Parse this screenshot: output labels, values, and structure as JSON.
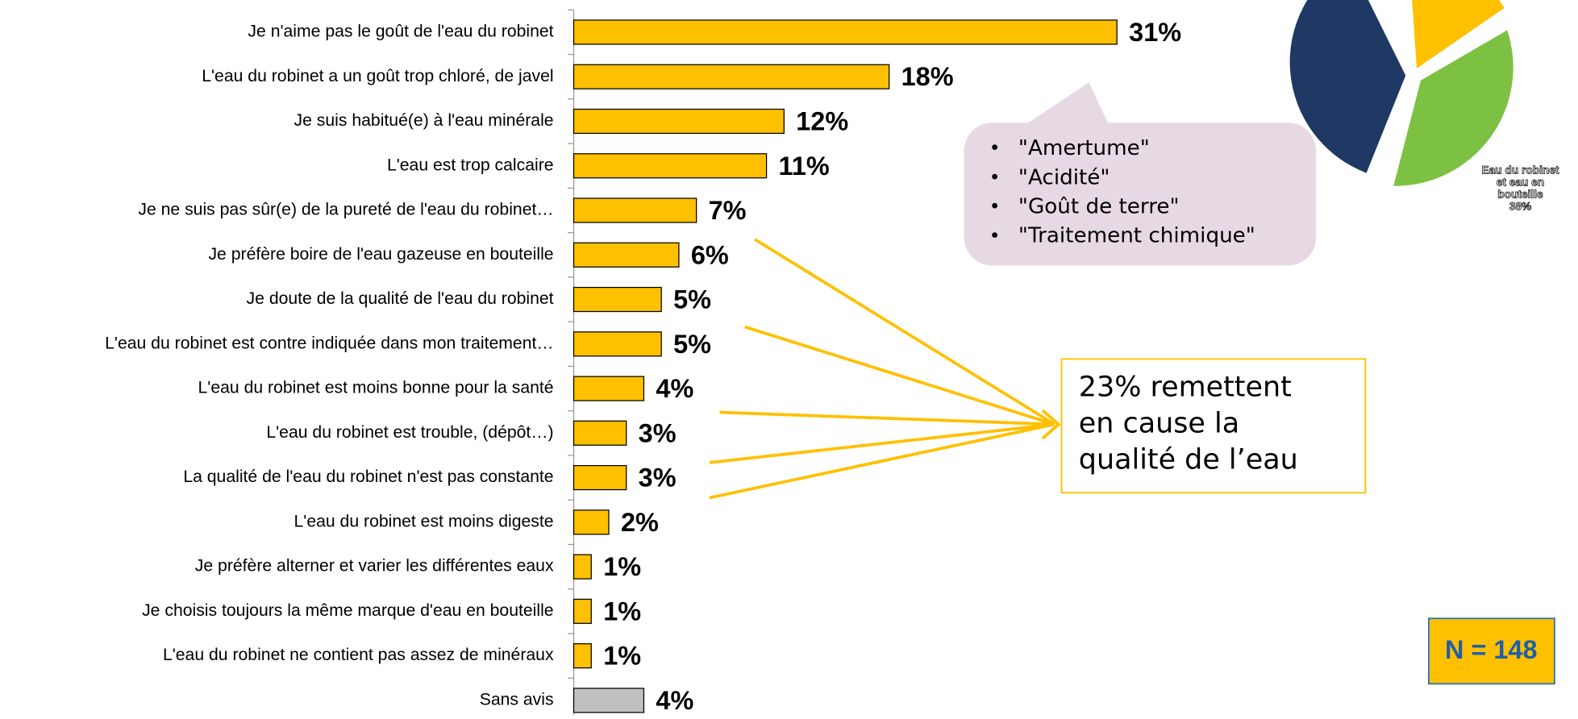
{
  "chart_data": {
    "type": "bar",
    "orientation": "horizontal",
    "categories": [
      "Je n'aime pas le goût de l'eau du robinet",
      "L'eau du robinet a un goût trop chloré, de javel",
      "Je suis habitué(e) à l'eau minérale",
      "L'eau est trop calcaire",
      "Je ne suis pas sûr(e) de la pureté de l'eau du robinet…",
      "Je préfère boire de l'eau gazeuse en bouteille",
      "Je doute de la qualité de l'eau du robinet",
      "L'eau du robinet est contre indiquée dans mon traitement…",
      "L'eau du robinet est moins bonne pour la santé",
      "L'eau du robinet est trouble, (dépôt…)",
      "La qualité de l'eau du robinet n'est pas constante",
      "L'eau du robinet est moins digeste",
      "Je préfère alterner et varier les différentes eaux",
      "Je choisis toujours la même marque d'eau en bouteille",
      "L'eau du robinet ne contient pas assez de minéraux",
      "Sans avis"
    ],
    "values": [
      31,
      18,
      12,
      11,
      7,
      6,
      5,
      5,
      4,
      3,
      3,
      2,
      1,
      1,
      1,
      4
    ],
    "value_labels": [
      "31%",
      "18%",
      "12%",
      "11%",
      "7%",
      "6%",
      "5%",
      "5%",
      "4%",
      "3%",
      "3%",
      "2%",
      "1%",
      "1%",
      "1%",
      "4%"
    ],
    "colors": [
      "#FFC000",
      "#FFC000",
      "#FFC000",
      "#FFC000",
      "#FFC000",
      "#FFC000",
      "#FFC000",
      "#FFC000",
      "#FFC000",
      "#FFC000",
      "#FFC000",
      "#FFC000",
      "#FFC000",
      "#FFC000",
      "#FFC000",
      "#C0C0C0"
    ],
    "xlim": [
      0,
      31
    ],
    "callout_items": [
      "\"Amertume\"",
      "\"Acidité\"",
      "\"Goût de terre\"",
      "\"Traitement chimique\""
    ],
    "quality_note_lines": [
      "23% remettent",
      "en cause la",
      "qualité de l’eau"
    ],
    "sample_size": "N = 148",
    "pie_label_lines": [
      "Eau du robinet",
      "et eau en",
      "bouteille",
      "38%"
    ]
  }
}
